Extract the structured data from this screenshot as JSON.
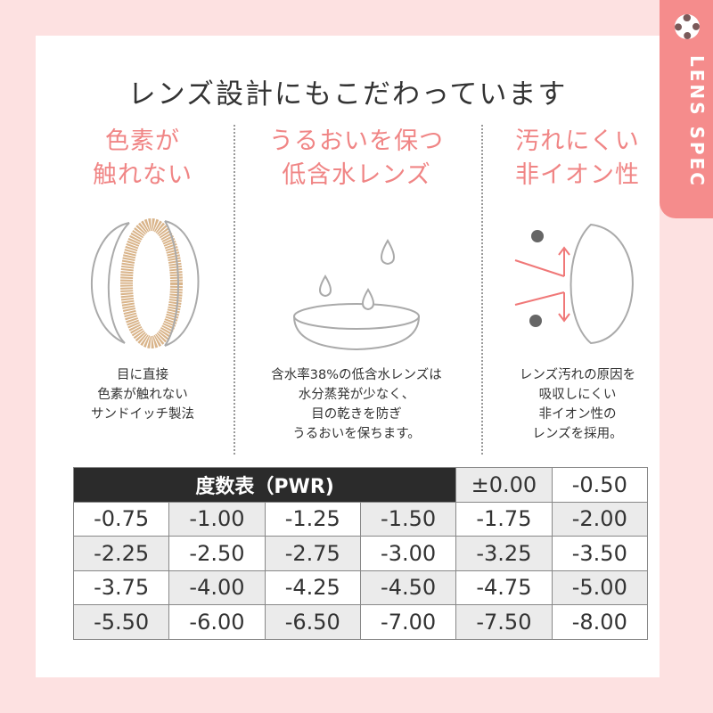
{
  "title": "レンズ設計にもこだわっています",
  "side_tab": "LENS SPEC",
  "features": [
    {
      "head": [
        "色素が",
        "触れない"
      ],
      "desc": [
        "目に直接",
        "色素が触れない",
        "サンドイッチ製法"
      ]
    },
    {
      "head": [
        "うるおいを保つ",
        "低含水レンズ"
      ],
      "desc": [
        "含水率38%の低含水レンズは",
        "水分蒸発が少なく、",
        "目の乾きを防ぎ",
        "うるおいを保ちます。"
      ]
    },
    {
      "head": [
        "汚れにくい",
        "非イオン性"
      ],
      "desc": [
        "レンズ汚れの原因を",
        "吸収しにくい",
        "非イオン性の",
        "レンズを採用。"
      ]
    }
  ],
  "power_table": {
    "header": "度数表（PWR)",
    "first_row": [
      "±0.00",
      "-0.50"
    ],
    "rows": [
      [
        "-0.75",
        "-1.00",
        "-1.25",
        "-1.50",
        "-1.75",
        "-2.00"
      ],
      [
        "-2.25",
        "-2.50",
        "-2.75",
        "-3.00",
        "-3.25",
        "-3.50"
      ],
      [
        "-3.75",
        "-4.00",
        "-4.25",
        "-4.50",
        "-4.75",
        "-5.00"
      ],
      [
        "-5.50",
        "-6.00",
        "-6.50",
        "-7.00",
        "-7.50",
        "-8.00"
      ]
    ]
  },
  "colors": {
    "accent": "#f58c8c",
    "background": "#fde1e1",
    "header_cell": "#2b2b2b",
    "shaded_cell": "#ebebeb"
  }
}
